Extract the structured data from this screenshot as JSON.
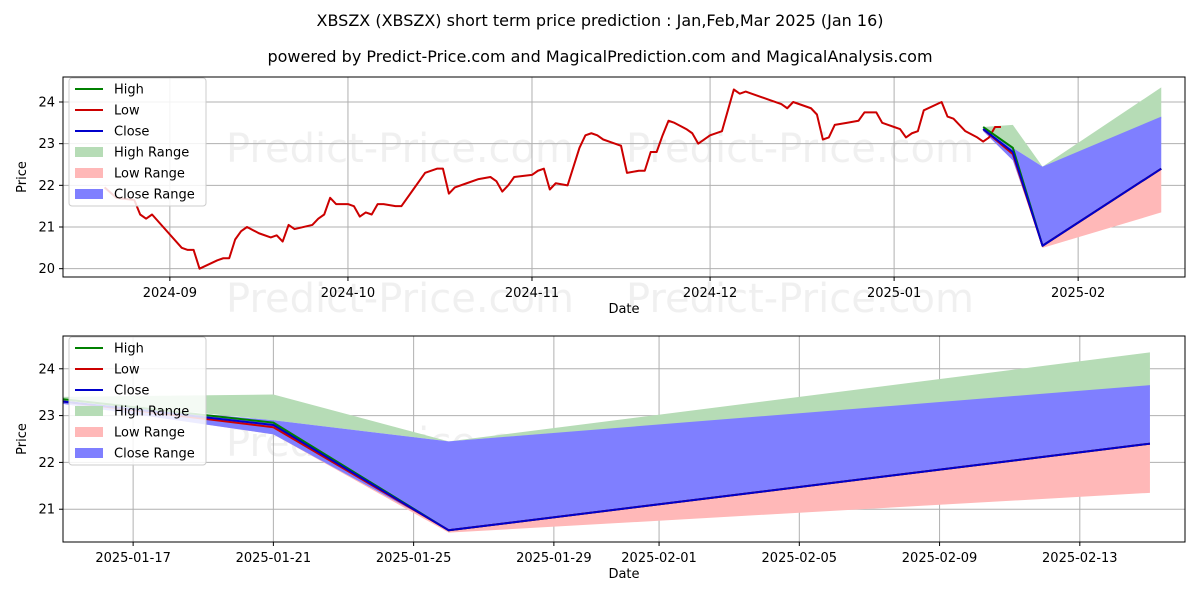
{
  "title": "XBSZX (XBSZX) short term price prediction : Jan,Feb,Mar 2025 (Jan 16)",
  "subtitle": "powered by Predict-Price.com and MagicalPrediction.com and MagicalAnalysis.com",
  "watermark": "Predict-Price.com",
  "colors": {
    "high": "#008000",
    "low": "#cc0000",
    "close": "#0000cc",
    "high_range": "#b6dcb6",
    "low_range": "#ffb8b8",
    "close_range": "#7f7fff"
  },
  "chart_data": [
    {
      "type": "line",
      "xlabel": "Date",
      "ylabel": "Price",
      "xlim": [
        "2024-08-14",
        "2025-02-19"
      ],
      "ylim": [
        19.8,
        24.6
      ],
      "grid": true,
      "legend_position": "upper-left",
      "x_ticks": [
        "2024-09-01",
        "2024-10-01",
        "2024-11-01",
        "2024-12-01",
        "2025-01-01",
        "2025-02-01"
      ],
      "x_tick_labels": [
        "2024-09",
        "2024-10",
        "2024-11",
        "2024-12",
        "2025-01",
        "2025-02"
      ],
      "y_ticks": [
        20,
        21,
        22,
        23,
        24
      ],
      "legend": [
        "High",
        "Low",
        "Close",
        "High Range",
        "Low Range",
        "Close Range"
      ],
      "history": {
        "name": "Low",
        "points": [
          [
            "2024-08-21",
            21.95
          ],
          [
            "2024-08-23",
            21.7
          ],
          [
            "2024-08-26",
            21.65
          ],
          [
            "2024-08-27",
            21.3
          ],
          [
            "2024-08-28",
            21.2
          ],
          [
            "2024-08-29",
            21.3
          ],
          [
            "2024-09-03",
            20.5
          ],
          [
            "2024-09-04",
            20.45
          ],
          [
            "2024-09-05",
            20.45
          ],
          [
            "2024-09-06",
            20.0
          ],
          [
            "2024-09-09",
            20.2
          ],
          [
            "2024-09-10",
            20.25
          ],
          [
            "2024-09-11",
            20.25
          ],
          [
            "2024-09-12",
            20.7
          ],
          [
            "2024-09-13",
            20.9
          ],
          [
            "2024-09-14",
            21.0
          ],
          [
            "2024-09-16",
            20.85
          ],
          [
            "2024-09-18",
            20.75
          ],
          [
            "2024-09-19",
            20.8
          ],
          [
            "2024-09-20",
            20.65
          ],
          [
            "2024-09-21",
            21.05
          ],
          [
            "2024-09-22",
            20.95
          ],
          [
            "2024-09-25",
            21.05
          ],
          [
            "2024-09-26",
            21.2
          ],
          [
            "2024-09-27",
            21.3
          ],
          [
            "2024-09-28",
            21.7
          ],
          [
            "2024-09-29",
            21.55
          ],
          [
            "2024-10-01",
            21.55
          ],
          [
            "2024-10-02",
            21.5
          ],
          [
            "2024-10-03",
            21.25
          ],
          [
            "2024-10-04",
            21.35
          ],
          [
            "2024-10-05",
            21.3
          ],
          [
            "2024-10-06",
            21.55
          ],
          [
            "2024-10-07",
            21.55
          ],
          [
            "2024-10-09",
            21.5
          ],
          [
            "2024-10-10",
            21.5
          ],
          [
            "2024-10-12",
            21.9
          ],
          [
            "2024-10-14",
            22.3
          ],
          [
            "2024-10-16",
            22.4
          ],
          [
            "2024-10-17",
            22.4
          ],
          [
            "2024-10-18",
            21.8
          ],
          [
            "2024-10-19",
            21.95
          ],
          [
            "2024-10-21",
            22.05
          ],
          [
            "2024-10-23",
            22.15
          ],
          [
            "2024-10-25",
            22.2
          ],
          [
            "2024-10-26",
            22.1
          ],
          [
            "2024-10-27",
            21.85
          ],
          [
            "2024-10-28",
            22.0
          ],
          [
            "2024-10-29",
            22.2
          ],
          [
            "2024-11-01",
            22.25
          ],
          [
            "2024-11-02",
            22.35
          ],
          [
            "2024-11-03",
            22.4
          ],
          [
            "2024-11-04",
            21.9
          ],
          [
            "2024-11-05",
            22.05
          ],
          [
            "2024-11-07",
            22.0
          ],
          [
            "2024-11-09",
            22.9
          ],
          [
            "2024-11-10",
            23.2
          ],
          [
            "2024-11-11",
            23.25
          ],
          [
            "2024-11-12",
            23.2
          ],
          [
            "2024-11-13",
            23.1
          ],
          [
            "2024-11-15",
            23.0
          ],
          [
            "2024-11-16",
            22.95
          ],
          [
            "2024-11-17",
            22.3
          ],
          [
            "2024-11-19",
            22.35
          ],
          [
            "2024-11-20",
            22.35
          ],
          [
            "2024-11-21",
            22.8
          ],
          [
            "2024-11-22",
            22.8
          ],
          [
            "2024-11-23",
            23.2
          ],
          [
            "2024-11-24",
            23.55
          ],
          [
            "2024-11-25",
            23.5
          ],
          [
            "2024-11-27",
            23.35
          ],
          [
            "2024-11-28",
            23.25
          ],
          [
            "2024-11-29",
            23.0
          ],
          [
            "2024-12-01",
            23.2
          ],
          [
            "2024-12-03",
            23.3
          ],
          [
            "2024-12-04",
            23.8
          ],
          [
            "2024-12-05",
            24.3
          ],
          [
            "2024-12-06",
            24.2
          ],
          [
            "2024-12-07",
            24.25
          ],
          [
            "2024-12-08",
            24.2
          ],
          [
            "2024-12-10",
            24.1
          ],
          [
            "2024-12-11",
            24.05
          ],
          [
            "2024-12-13",
            23.95
          ],
          [
            "2024-12-14",
            23.85
          ],
          [
            "2024-12-15",
            24.0
          ],
          [
            "2024-12-18",
            23.85
          ],
          [
            "2024-12-19",
            23.7
          ],
          [
            "2024-12-20",
            23.1
          ],
          [
            "2024-12-21",
            23.15
          ],
          [
            "2024-12-22",
            23.45
          ],
          [
            "2024-12-24",
            23.5
          ],
          [
            "2024-12-26",
            23.55
          ],
          [
            "2024-12-27",
            23.75
          ],
          [
            "2024-12-29",
            23.75
          ],
          [
            "2024-12-30",
            23.5
          ],
          [
            "2025-01-01",
            23.4
          ],
          [
            "2025-01-02",
            23.35
          ],
          [
            "2025-01-03",
            23.15
          ],
          [
            "2025-01-04",
            23.25
          ],
          [
            "2025-01-05",
            23.3
          ],
          [
            "2025-01-06",
            23.8
          ],
          [
            "2025-01-09",
            24.0
          ],
          [
            "2025-01-10",
            23.65
          ],
          [
            "2025-01-11",
            23.6
          ],
          [
            "2025-01-13",
            23.3
          ],
          [
            "2025-01-15",
            23.15
          ],
          [
            "2025-01-16",
            23.05
          ],
          [
            "2025-01-17",
            23.15
          ],
          [
            "2025-01-18",
            23.4
          ],
          [
            "2025-01-19",
            23.4
          ]
        ]
      },
      "forecast_dates": [
        "2025-01-16",
        "2025-01-21",
        "2025-01-26",
        "2025-02-15"
      ],
      "series": [
        {
          "name": "High",
          "values": [
            23.4,
            22.9,
            20.55,
            22.4
          ]
        },
        {
          "name": "Low",
          "values": [
            23.35,
            22.75,
            20.55,
            22.4
          ]
        },
        {
          "name": "Close",
          "values": [
            23.35,
            22.8,
            20.55,
            22.4
          ]
        },
        {
          "name": "High Range",
          "upper": [
            23.4,
            23.45,
            22.45,
            24.35
          ],
          "lower": [
            23.4,
            22.9,
            22.45,
            23.6
          ]
        },
        {
          "name": "Low Range",
          "upper": [
            23.35,
            22.75,
            20.55,
            22.4
          ],
          "lower": [
            23.3,
            22.6,
            20.5,
            21.35
          ]
        },
        {
          "name": "Close Range",
          "upper": [
            23.35,
            22.9,
            22.45,
            23.65
          ],
          "lower": [
            23.3,
            22.6,
            20.55,
            22.4
          ]
        }
      ]
    },
    {
      "type": "line",
      "xlabel": "Date",
      "ylabel": "Price",
      "xlim": [
        "2025-01-15",
        "2025-02-16"
      ],
      "ylim": [
        20.3,
        24.7
      ],
      "grid": true,
      "legend_position": "upper-left",
      "x_ticks": [
        "2025-01-17",
        "2025-01-21",
        "2025-01-25",
        "2025-01-29",
        "2025-02-01",
        "2025-02-05",
        "2025-02-09",
        "2025-02-13"
      ],
      "x_tick_labels": [
        "2025-01-17",
        "2025-01-21",
        "2025-01-25",
        "2025-01-29",
        "2025-02-01",
        "2025-02-05",
        "2025-02-09",
        "2025-02-13"
      ],
      "y_ticks": [
        21,
        22,
        23,
        24
      ],
      "legend": [
        "High",
        "Low",
        "Close",
        "High Range",
        "Low Range",
        "Close Range"
      ],
      "forecast_dates": [
        "2025-01-15",
        "2025-01-21",
        "2025-01-26",
        "2025-02-15"
      ],
      "series": [
        {
          "name": "High",
          "values": [
            23.35,
            22.85,
            20.55,
            22.4
          ]
        },
        {
          "name": "Low",
          "values": [
            23.3,
            22.75,
            20.55,
            22.4
          ]
        },
        {
          "name": "Close",
          "values": [
            23.3,
            22.8,
            20.55,
            22.4
          ]
        },
        {
          "name": "High Range",
          "upper": [
            23.4,
            23.45,
            22.45,
            24.35
          ],
          "lower": [
            23.35,
            22.9,
            22.45,
            23.6
          ]
        },
        {
          "name": "Low Range",
          "upper": [
            23.3,
            22.75,
            20.55,
            22.4
          ],
          "lower": [
            23.25,
            22.6,
            20.5,
            21.35
          ]
        },
        {
          "name": "Close Range",
          "upper": [
            23.3,
            22.9,
            22.45,
            23.65
          ],
          "lower": [
            23.25,
            22.6,
            20.55,
            22.4
          ]
        }
      ]
    }
  ]
}
